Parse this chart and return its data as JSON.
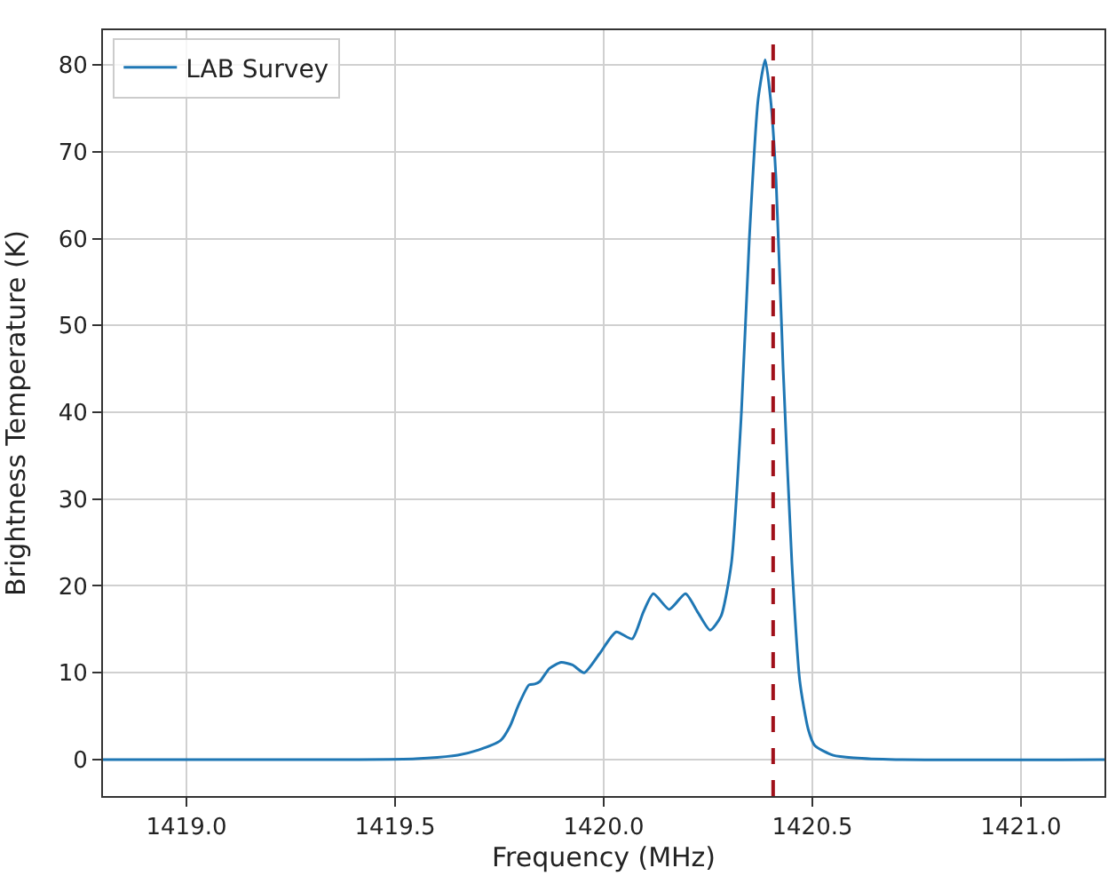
{
  "chart_data": {
    "type": "line",
    "xlabel": "Frequency (MHz)",
    "ylabel": "Brightness Temperature (K)",
    "xlim": [
      1418.8,
      1421.2
    ],
    "xticks": [
      {
        "value": 1419.0,
        "label": "1419.0"
      },
      {
        "value": 1419.5,
        "label": "1419.5"
      },
      {
        "value": 1420.0,
        "label": "1420.0"
      },
      {
        "value": 1420.5,
        "label": "1420.5"
      },
      {
        "value": 1421.0,
        "label": "1421.0"
      }
    ],
    "ylim": [
      -4.2,
      84
    ],
    "yticks": [
      0,
      10,
      20,
      30,
      40,
      50,
      60,
      70,
      80
    ],
    "grid": true,
    "legend": "top left",
    "line_style": "solid",
    "series": [
      {
        "name": "LAB Survey",
        "color": "#1f77b4",
        "x": [
          1418.8,
          1419.4,
          1419.55,
          1419.65,
          1419.7,
          1419.753,
          1419.775,
          1419.796,
          1419.821,
          1419.835,
          1419.847,
          1419.87,
          1419.898,
          1419.925,
          1419.953,
          1419.99,
          1420.03,
          1420.068,
          1420.095,
          1420.119,
          1420.157,
          1420.196,
          1420.225,
          1420.255,
          1420.281,
          1420.306,
          1420.33,
          1420.349,
          1420.37,
          1420.387,
          1420.4,
          1420.413,
          1420.43,
          1420.451,
          1420.47,
          1420.49,
          1420.506,
          1420.55,
          1420.6,
          1420.7,
          1421.2
        ],
        "values": [
          0,
          0,
          0.1,
          0.5,
          1.1,
          2.2,
          3.8,
          6.3,
          8.6,
          8.7,
          9.0,
          10.5,
          11.2,
          10.9,
          10.0,
          12.2,
          14.7,
          13.9,
          17,
          19.1,
          17.3,
          19.1,
          17,
          14.9,
          16.5,
          22.6,
          40,
          60,
          76,
          80.6,
          76,
          66.8,
          45,
          22.6,
          9,
          3.5,
          1.6,
          0.5,
          0.2,
          0,
          0
        ]
      }
    ],
    "ref_lines": [
      {
        "axis": "x",
        "value": 1420.406,
        "color": "#a0101a",
        "line_style": "dashed"
      }
    ]
  }
}
